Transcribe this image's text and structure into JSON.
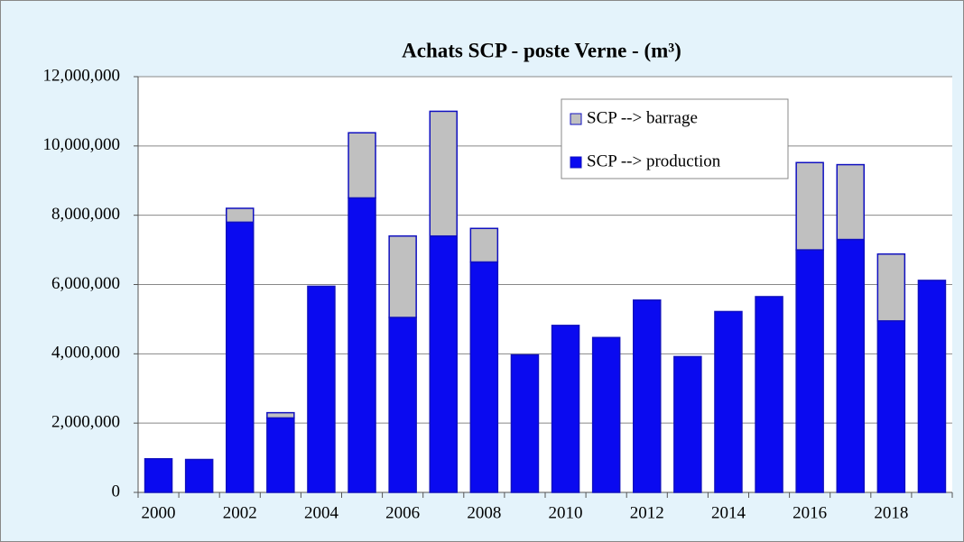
{
  "chart_data": {
    "type": "bar",
    "stacked": true,
    "title": "Achats SCP - poste Verne - (m³)",
    "categories": [
      "2000",
      null,
      "2002",
      null,
      "2004",
      null,
      "2006",
      null,
      "2008",
      null,
      "2010",
      null,
      "2012",
      null,
      "2014",
      null,
      "2016",
      null,
      "2018",
      null
    ],
    "series": [
      {
        "name": "SCP --> production",
        "color": "#0a0af0",
        "values": [
          970000,
          950000,
          7800000,
          2150000,
          5950000,
          8500000,
          5050000,
          7400000,
          6650000,
          3970000,
          4820000,
          4470000,
          5550000,
          3920000,
          5220000,
          5650000,
          7000000,
          7300000,
          4950000,
          6120000
        ]
      },
      {
        "name": "SCP --> barrage",
        "color": "#c0c0c0",
        "values": [
          0,
          0,
          400000,
          150000,
          0,
          1880000,
          2350000,
          3600000,
          970000,
          0,
          0,
          0,
          0,
          0,
          0,
          0,
          2520000,
          2160000,
          1930000,
          0
        ]
      }
    ],
    "ylim": [
      0,
      12000000
    ],
    "yticks": [
      0,
      {
        "value": 2000000,
        "label": "2,000,000"
      },
      {
        "value": 4000000,
        "label": "4,000,000"
      },
      {
        "value": 6000000,
        "label": "6,000,000"
      },
      {
        "value": 8000000,
        "label": "8,000,000"
      },
      {
        "value": 10000000,
        "label": "10,000,000"
      },
      {
        "value": 12000000,
        "label": "12,000,000"
      }
    ],
    "grid": true,
    "legend": "upper right"
  }
}
